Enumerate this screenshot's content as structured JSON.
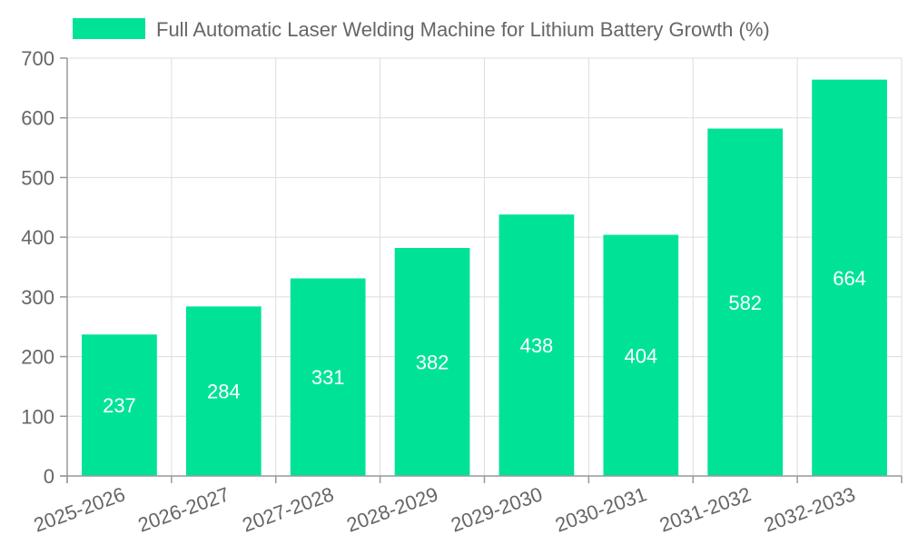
{
  "chart_data": {
    "type": "bar",
    "title": "",
    "xlabel": "",
    "ylabel": "",
    "legend_position": "top",
    "grid": true,
    "categories": [
      "2025-2026",
      "2026-2027",
      "2027-2028",
      "2028-2029",
      "2029-2030",
      "2030-2031",
      "2031-2032",
      "2032-2033"
    ],
    "series": [
      {
        "name": "Full Automatic Laser Welding Machine for Lithium Battery Growth (%)",
        "values": [
          237,
          284,
          331,
          382,
          438,
          404,
          582,
          664
        ],
        "color": "#00e396"
      }
    ],
    "ylim": [
      0,
      700
    ],
    "yticks": [
      0,
      100,
      200,
      300,
      400,
      500,
      600,
      700
    ]
  }
}
